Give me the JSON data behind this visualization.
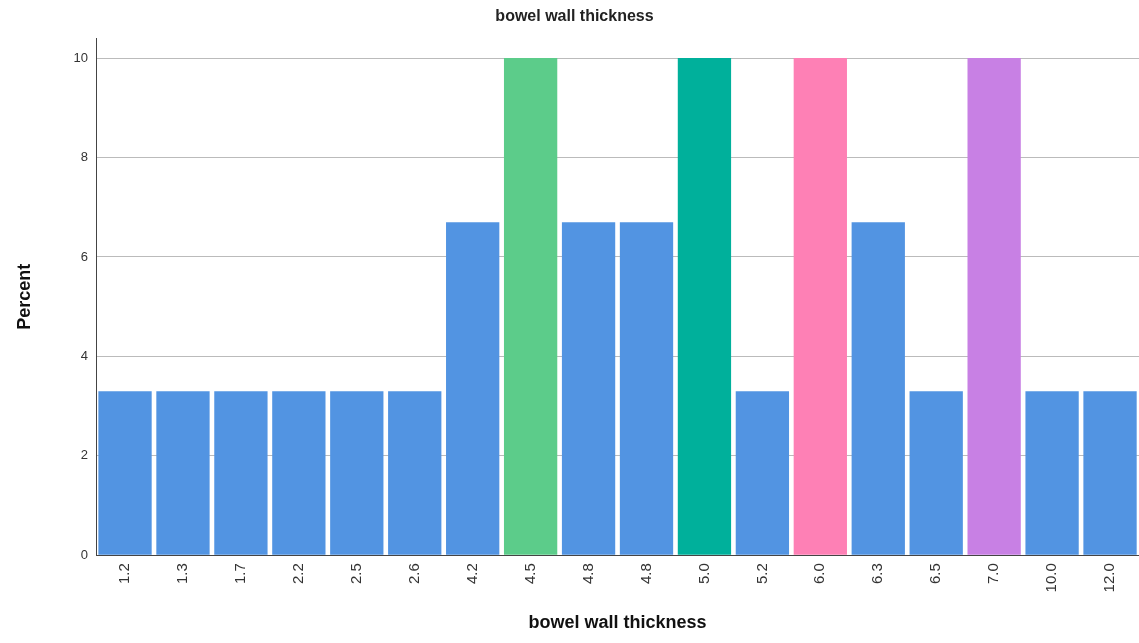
{
  "chart_data": {
    "type": "bar",
    "title": "bowel wall thickness",
    "xlabel": "bowel wall thickness",
    "ylabel": "Percent",
    "categories": [
      "1.2",
      "1.3",
      "1.7",
      "2.2",
      "2.5",
      "2.6",
      "4.2",
      "4.5",
      "4.8",
      "4.8",
      "5.0",
      "5.2",
      "6.0",
      "6.3",
      "6.5",
      "7.0",
      "10.0",
      "12.0"
    ],
    "values": [
      3.3,
      3.3,
      3.3,
      3.3,
      3.3,
      3.3,
      6.7,
      10,
      6.7,
      6.7,
      10,
      3.3,
      10,
      6.7,
      3.3,
      10,
      3.3,
      3.3
    ],
    "colors": [
      "#5294e2",
      "#5294e2",
      "#5294e2",
      "#5294e2",
      "#5294e2",
      "#5294e2",
      "#5294e2",
      "#5ccc8a",
      "#5294e2",
      "#5294e2",
      "#00b09b",
      "#5294e2",
      "#fe80b5",
      "#5294e2",
      "#5294e2",
      "#c880e4",
      "#5294e2",
      "#5294e2"
    ],
    "ylim": [
      0,
      10.4
    ],
    "yticks": [
      0,
      2,
      4,
      6,
      8,
      10
    ],
    "grid": "y"
  }
}
